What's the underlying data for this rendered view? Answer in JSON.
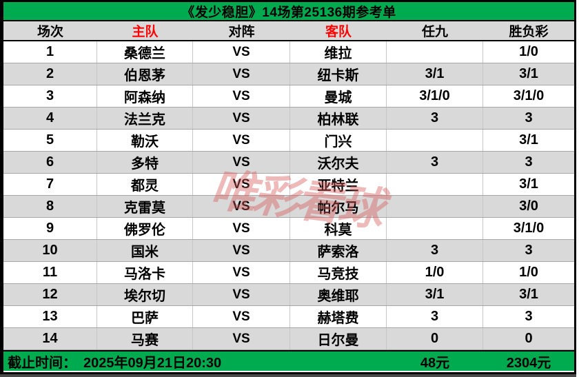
{
  "colors": {
    "bar_green": "#00ab50",
    "row_alt_gray": "#d9d9d9",
    "header_red": "#ff0000",
    "watermark_pink": "#d65858"
  },
  "watermark": {
    "text": "唯彩看球"
  },
  "footer": {
    "deadline_label": "截止时间：",
    "deadline_value": "2025年09月21日20:30",
    "ren9_amount": "48元",
    "sfc_amount": "2304元"
  },
  "chart_data": {
    "type": "table",
    "title": "《发少稳胆》14场第25136期参考单",
    "columns": [
      "场次",
      "主队",
      "对阵",
      "客队",
      "任九",
      "胜负彩"
    ],
    "red_columns": [
      "主队",
      "客队"
    ],
    "vs_label": "VS",
    "rows": [
      {
        "no": "1",
        "home": "桑德兰",
        "away": "维拉",
        "ren9": "",
        "sfc": "1/0"
      },
      {
        "no": "2",
        "home": "伯恩茅",
        "away": "纽卡斯",
        "ren9": "3/1",
        "sfc": "3/1"
      },
      {
        "no": "3",
        "home": "阿森纳",
        "away": "曼城",
        "ren9": "3/1/0",
        "sfc": "3/1/0"
      },
      {
        "no": "4",
        "home": "法兰克",
        "away": "柏林联",
        "ren9": "3",
        "sfc": "3"
      },
      {
        "no": "5",
        "home": "勒沃",
        "away": "门兴",
        "ren9": "",
        "sfc": "3/1"
      },
      {
        "no": "6",
        "home": "多特",
        "away": "沃尔夫",
        "ren9": "3",
        "sfc": "3"
      },
      {
        "no": "7",
        "home": "都灵",
        "away": "亚特兰",
        "ren9": "",
        "sfc": "3/1"
      },
      {
        "no": "8",
        "home": "克雷莫",
        "away": "帕尔马",
        "ren9": "",
        "sfc": "3/0"
      },
      {
        "no": "9",
        "home": "佛罗伦",
        "away": "科莫",
        "ren9": "",
        "sfc": "3/1/0"
      },
      {
        "no": "10",
        "home": "国米",
        "away": "萨索洛",
        "ren9": "3",
        "sfc": "3"
      },
      {
        "no": "11",
        "home": "马洛卡",
        "away": "马竞技",
        "ren9": "1/0",
        "sfc": "1/0"
      },
      {
        "no": "12",
        "home": "埃尔切",
        "away": "奥维耶",
        "ren9": "3/1",
        "sfc": "3/1"
      },
      {
        "no": "13",
        "home": "巴萨",
        "away": "赫塔费",
        "ren9": "3",
        "sfc": "3"
      },
      {
        "no": "14",
        "home": "马赛",
        "away": "日尔曼",
        "ren9": "0",
        "sfc": "0"
      }
    ]
  }
}
